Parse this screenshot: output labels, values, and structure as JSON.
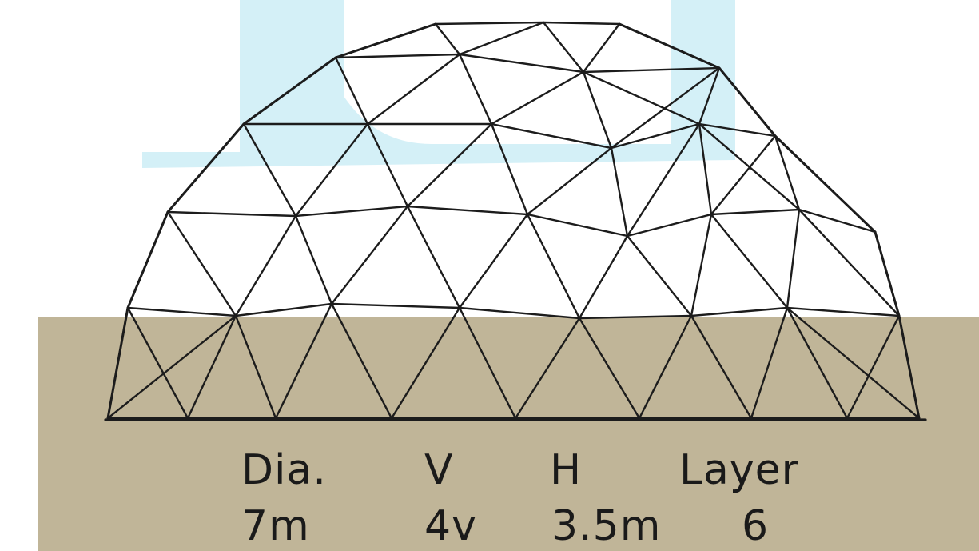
{
  "colors": {
    "ground": "#c0b598",
    "watermark": "#cfeef6",
    "strut": "#1c1c1c",
    "background": "#ffffff"
  },
  "specs": {
    "headers": [
      "Dia.",
      "V",
      "H",
      "Layer"
    ],
    "values": [
      "7m",
      "4v",
      "3.5m",
      "6"
    ]
  }
}
